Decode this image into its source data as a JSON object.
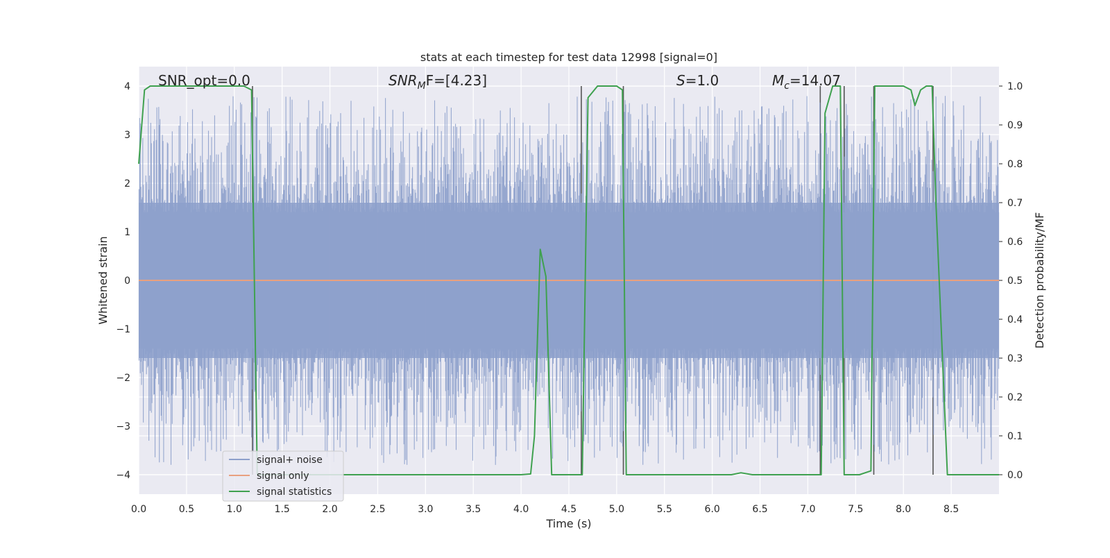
{
  "chart_data": {
    "type": "line",
    "title": "stats at each timestep for test data 12998 [signal=0]",
    "xlabel": "Time (s)",
    "ylabel": "Whitened strain",
    "ylabel_right": "Detection probability/MF",
    "xlim": [
      0,
      9.0
    ],
    "ylim": [
      -4.4,
      4.4
    ],
    "ylim_right": [
      -0.05,
      1.05
    ],
    "xticks": [
      "0.0",
      "0.5",
      "1.0",
      "1.5",
      "2.0",
      "2.5",
      "3.0",
      "3.5",
      "4.0",
      "4.5",
      "5.0",
      "5.5",
      "6.0",
      "6.5",
      "7.0",
      "7.5",
      "8.0",
      "8.5"
    ],
    "yticks_left": [
      "4",
      "3",
      "2",
      "1",
      "0",
      "−1",
      "−2",
      "−3",
      "−4"
    ],
    "yticks_right": [
      "1.0",
      "0.9",
      "0.8",
      "0.7",
      "0.6",
      "0.5",
      "0.4",
      "0.3",
      "0.2",
      "0.1",
      "0.0"
    ],
    "grid": true,
    "legend_position": "lower-left",
    "annotations": {
      "snr_opt": "SNR_opt=0.0",
      "snr_mf_main": "SNR",
      "snr_mf_sub": "M",
      "snr_mf_rest": "F=[4.23]",
      "s_main": "S",
      "s_rest": "=1.0",
      "mc_main": "M",
      "mc_sub": "c",
      "mc_rest": "=14.07"
    },
    "series": [
      {
        "name": "signal+ noise",
        "color": "#8da0cb",
        "note_values": "noise band roughly within [-2, 2] with spikes to ±3.8",
        "envelope_upper": 1.6,
        "envelope_lower": -1.6,
        "spike_max": 3.8,
        "spike_min": -3.8
      },
      {
        "name": "signal only",
        "color": "#e8a07f",
        "x": [
          0,
          9.0
        ],
        "y": [
          0,
          0
        ]
      },
      {
        "name": "signal statistics",
        "color": "#3fa14f",
        "axis": "right",
        "x": [
          0,
          0.06,
          0.12,
          0.3,
          0.6,
          1.0,
          1.1,
          1.18,
          1.24,
          1.3,
          2.0,
          3.0,
          4.0,
          4.1,
          4.14,
          4.2,
          4.26,
          4.32,
          4.6,
          4.64,
          4.7,
          4.8,
          4.9,
          5.0,
          5.06,
          5.1,
          5.18,
          5.3,
          6.0,
          6.2,
          6.3,
          6.42,
          7.0,
          7.14,
          7.18,
          7.26,
          7.34,
          7.38,
          7.44,
          7.54,
          7.66,
          7.7,
          7.76,
          8.0,
          8.08,
          8.12,
          8.18,
          8.24,
          8.3,
          8.34,
          8.46,
          9.0
        ],
        "y": [
          0.8,
          0.99,
          1.0,
          1.0,
          1.0,
          1.0,
          1.0,
          0.99,
          0.0,
          0.0,
          0.0,
          0.0,
          0.0,
          0.002,
          0.1,
          0.58,
          0.51,
          0.0,
          0.0,
          0.0,
          0.97,
          1.0,
          1.0,
          1.0,
          0.99,
          0.0,
          0.0,
          0.0,
          0.0,
          0.0,
          0.005,
          0.0,
          0.0,
          0.0,
          0.93,
          1.0,
          1.0,
          0.0,
          0.0,
          0.0,
          0.01,
          1.0,
          1.0,
          1.0,
          0.99,
          0.95,
          0.99,
          1.0,
          1.0,
          0.7,
          0.0,
          0.0
        ]
      }
    ],
    "vertical_markers_x": [
      1.19,
      4.63,
      5.07,
      7.13,
      7.38,
      7.69,
      8.31
    ]
  }
}
